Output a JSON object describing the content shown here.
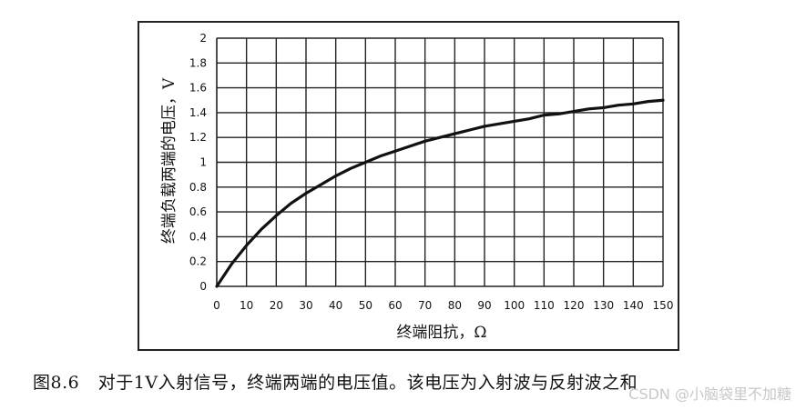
{
  "caption": {
    "figure_number": "图8.6",
    "text": "对于1V入射信号，终端两端的电压值。该电压为入射波与反射波之和"
  },
  "watermark": "CSDN @小脑袋里不加糖",
  "chart_data": {
    "type": "line",
    "title": "",
    "xlabel": "终端阻抗，Ω",
    "ylabel": "终端负载两端的电压，V",
    "xlim": [
      0,
      150
    ],
    "ylim": [
      0,
      2
    ],
    "x_ticks": [
      "0",
      "10",
      "20",
      "30",
      "40",
      "50",
      "60",
      "70",
      "80",
      "90",
      "100",
      "110",
      "120",
      "130",
      "140",
      "150"
    ],
    "y_ticks": [
      "0",
      "0.2",
      "0.4",
      "0.6",
      "0.8",
      "1",
      "1.2",
      "1.4",
      "1.6",
      "1.8",
      "2"
    ],
    "grid": true,
    "series": [
      {
        "x": [
          0,
          5,
          10,
          15,
          20,
          25,
          30,
          35,
          40,
          45,
          50,
          55,
          60,
          65,
          70,
          75,
          80,
          85,
          90,
          95,
          100,
          105,
          110,
          115,
          120,
          125,
          130,
          135,
          140,
          145,
          150
        ],
        "values": [
          0,
          0.18,
          0.33,
          0.46,
          0.57,
          0.67,
          0.75,
          0.82,
          0.89,
          0.95,
          1.0,
          1.05,
          1.09,
          1.13,
          1.17,
          1.2,
          1.23,
          1.26,
          1.29,
          1.31,
          1.33,
          1.35,
          1.38,
          1.39,
          1.41,
          1.43,
          1.44,
          1.46,
          1.47,
          1.49,
          1.5
        ]
      }
    ]
  }
}
